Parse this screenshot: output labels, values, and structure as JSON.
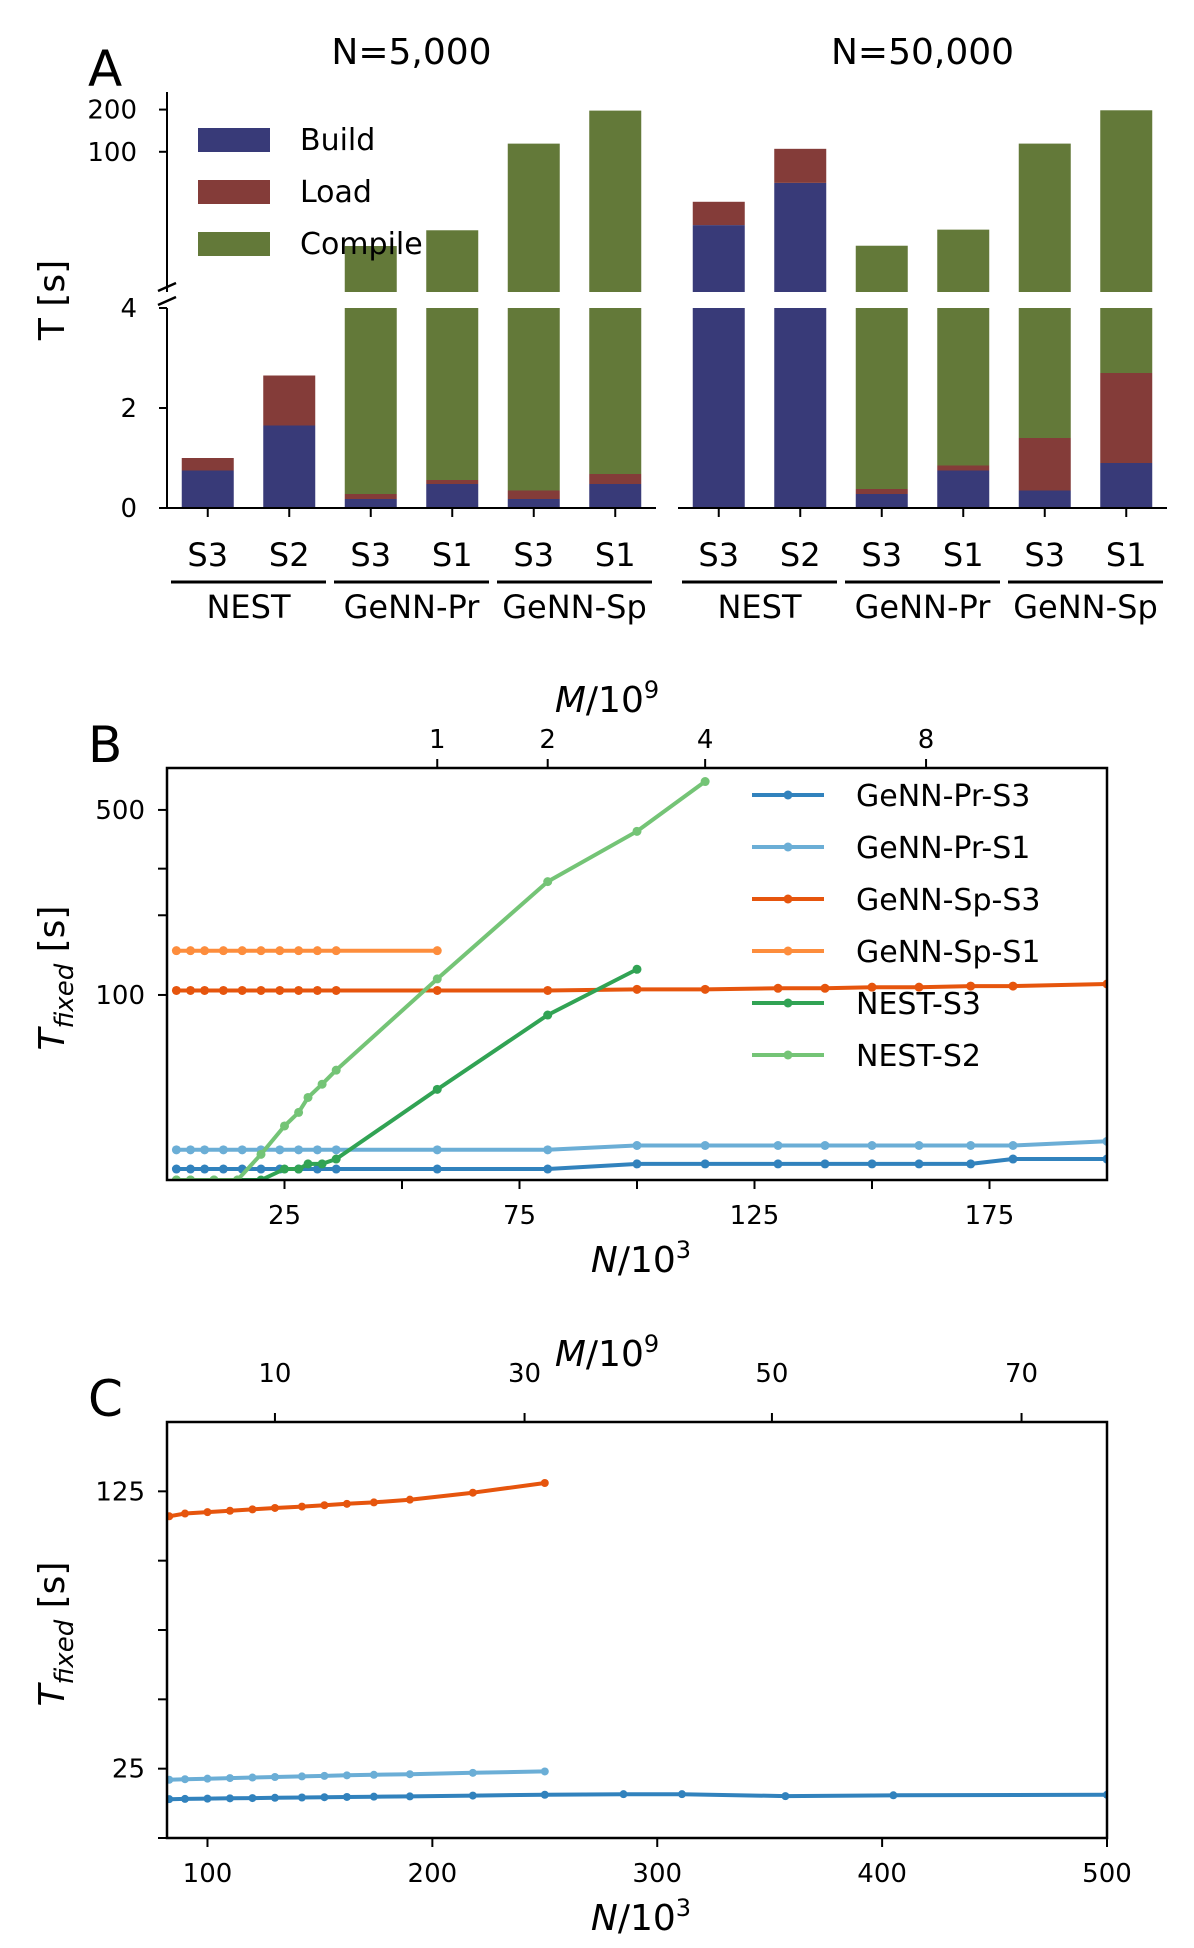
{
  "colors": {
    "build": "#383a78",
    "load": "#843c39",
    "compile": "#637939",
    "GeNN-Pr-S3": "#3182bd",
    "GeNN-Pr-S1": "#6baed6",
    "GeNN-Sp-S3": "#e6550d",
    "GeNN-Sp-S1": "#fd8d3c",
    "NEST-S3": "#31a354",
    "NEST-S2": "#74c476"
  },
  "chart_data": [
    {
      "panel": "A",
      "type": "bar",
      "stacked": true,
      "ylabel": "T [s]",
      "broken_axis": true,
      "lower_ylim": [
        0,
        4
      ],
      "upper_ylim": [
        10,
        250
      ],
      "yticks_lower": [
        "0",
        "2",
        "4"
      ],
      "yticks_upper": [
        "100",
        "200"
      ],
      "legend": [
        "Build",
        "Load",
        "Compile"
      ],
      "legend_position": "top-left",
      "groups": [
        {
          "title": "N=5,000",
          "categories": [
            "S3",
            "S2",
            "S3",
            "S1",
            "S3",
            "S1"
          ],
          "simulators": [
            {
              "name": "NEST",
              "span": [
                0,
                1
              ]
            },
            {
              "name": "GeNN-Pr",
              "span": [
                2,
                3
              ]
            },
            {
              "name": "GeNN-Sp",
              "span": [
                4,
                5
              ]
            }
          ],
          "series": [
            {
              "name": "Build",
              "values": [
                0.75,
                1.65,
                0.18,
                0.48,
                0.18,
                0.48
              ]
            },
            {
              "name": "Load",
              "values": [
                0.25,
                1.0,
                0.1,
                0.08,
                0.17,
                0.2
              ]
            },
            {
              "name": "Compile",
              "values": [
                0,
                0,
                21,
                27,
                114,
                196
              ]
            }
          ]
        },
        {
          "title": "N=50,000",
          "categories": [
            "S3",
            "S2",
            "S3",
            "S1",
            "S3",
            "S1"
          ],
          "simulators": [
            {
              "name": "NEST",
              "span": [
                0,
                1
              ]
            },
            {
              "name": "GeNN-Pr",
              "span": [
                2,
                3
              ]
            },
            {
              "name": "GeNN-Sp",
              "span": [
                4,
                5
              ]
            }
          ],
          "series": [
            {
              "name": "Build",
              "values": [
                30,
                60,
                0.28,
                0.75,
                0.35,
                0.9
              ]
            },
            {
              "name": "Load",
              "values": [
                14,
                45,
                0.1,
                0.1,
                1.05,
                1.8
              ]
            },
            {
              "name": "Compile",
              "values": [
                0,
                0,
                21,
                27,
                113,
                195
              ]
            }
          ]
        }
      ]
    },
    {
      "panel": "B",
      "type": "line",
      "xlabel": "N/10³",
      "ylabel": "T_fixed [s]",
      "top_xlabel": "M/10⁹",
      "xlim": [
        0,
        200
      ],
      "ylim": [
        20,
        720
      ],
      "yticks": [
        "100",
        "500"
      ],
      "xticks": [
        "25",
        "75",
        "125",
        "175"
      ],
      "top_xticks": [
        {
          "label": "1",
          "x": 57.5
        },
        {
          "label": "2",
          "x": 81
        },
        {
          "label": "4",
          "x": 114.5
        },
        {
          "label": "8",
          "x": 161.5
        }
      ],
      "legend_position": "top-right",
      "series": [
        {
          "name": "GeNN-Pr-S3",
          "x": [
            2,
            5,
            8,
            12,
            16,
            20,
            24,
            28,
            32,
            36,
            57.5,
            81,
            100,
            114.5,
            130,
            140,
            150,
            160,
            171,
            180,
            200
          ],
          "y": [
            22,
            22,
            22,
            22,
            22,
            22,
            22,
            22,
            22,
            22,
            22,
            22,
            23,
            23,
            23,
            23,
            23,
            23,
            23,
            24,
            24
          ]
        },
        {
          "name": "GeNN-Pr-S1",
          "x": [
            2,
            5,
            8,
            12,
            16,
            20,
            24,
            28,
            32,
            36,
            57.5,
            81,
            100,
            114.5,
            130,
            140,
            150,
            160,
            171,
            180,
            200
          ],
          "y": [
            26,
            26,
            26,
            26,
            26,
            26,
            26,
            26,
            26,
            26,
            26,
            26,
            27,
            27,
            27,
            27,
            27,
            27,
            27,
            27,
            28
          ]
        },
        {
          "name": "GeNN-Sp-S3",
          "x": [
            2,
            5,
            8,
            12,
            16,
            20,
            24,
            28,
            32,
            36,
            57.5,
            81,
            100,
            114.5,
            130,
            140,
            150,
            160,
            171,
            180,
            200
          ],
          "y": [
            104,
            104,
            104,
            104,
            104,
            104,
            104,
            104,
            104,
            104,
            104,
            104,
            105,
            105,
            106,
            106,
            107,
            107,
            108,
            108,
            110
          ]
        },
        {
          "name": "GeNN-Sp-S1",
          "x": [
            2,
            5,
            8,
            12,
            16,
            20,
            24,
            28,
            32,
            36,
            57.5
          ],
          "y": [
            147,
            147,
            147,
            147,
            147,
            147,
            147,
            147,
            147,
            147,
            147
          ]
        },
        {
          "name": "NEST-S3",
          "x": [
            2,
            5,
            10,
            15,
            20,
            25,
            28,
            30,
            33,
            36,
            57.5,
            81,
            100
          ],
          "y": [
            20,
            20,
            20,
            20,
            20,
            22,
            22,
            23,
            23,
            24,
            44,
            84,
            125
          ]
        },
        {
          "name": "NEST-S2",
          "x": [
            2,
            5,
            10,
            15,
            20,
            25,
            28,
            30,
            33,
            36,
            57.5,
            81,
            100,
            114.5
          ],
          "y": [
            20,
            20,
            20,
            20,
            25,
            32,
            36,
            41,
            46,
            52,
            115,
            268,
            415,
            640
          ]
        }
      ]
    },
    {
      "panel": "C",
      "type": "line",
      "xlabel": "N/10³",
      "ylabel": "T_fixed [s]",
      "top_xlabel": "M/10⁹",
      "xlim": [
        82,
        500
      ],
      "ylim": [
        0,
        150
      ],
      "yticks": [
        "25",
        "125"
      ],
      "xticks": [
        "100",
        "200",
        "300",
        "400",
        "500"
      ],
      "top_xticks": [
        {
          "label": "10",
          "x": 130
        },
        {
          "label": "30",
          "x": 241
        },
        {
          "label": "50",
          "x": 351
        },
        {
          "label": "70",
          "x": 462
        }
      ],
      "series": [
        {
          "name": "GeNN-Pr-S3",
          "x": [
            83,
            90,
            100,
            110,
            120,
            130,
            142,
            152,
            162,
            174,
            190,
            218,
            250,
            285,
            311,
            357,
            405,
            500
          ],
          "y": [
            14,
            14.1,
            14.2,
            14.3,
            14.4,
            14.5,
            14.6,
            14.7,
            14.8,
            14.9,
            15,
            15.3,
            15.6,
            15.8,
            15.8,
            15.1,
            15.4,
            15.6
          ]
        },
        {
          "name": "GeNN-Pr-S1",
          "x": [
            83,
            90,
            100,
            110,
            120,
            130,
            142,
            152,
            162,
            174,
            190,
            218,
            250
          ],
          "y": [
            21,
            21.2,
            21.4,
            21.6,
            21.8,
            22,
            22.2,
            22.4,
            22.6,
            22.8,
            23,
            23.5,
            24
          ]
        },
        {
          "name": "GeNN-Sp-S3",
          "x": [
            83,
            90,
            100,
            110,
            120,
            130,
            142,
            152,
            162,
            174,
            190,
            218,
            250
          ],
          "y": [
            116,
            117,
            117.5,
            118,
            118.5,
            119,
            119.5,
            120,
            120.5,
            121,
            122,
            124.5,
            128
          ]
        }
      ]
    }
  ]
}
